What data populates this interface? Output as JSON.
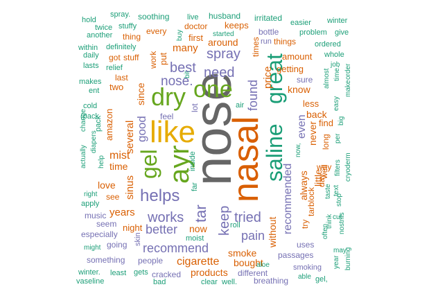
{
  "palette": {
    "teal": "#1b9e77",
    "orange": "#d95f02",
    "purple": "#7570b3",
    "green": "#66a61e",
    "gold": "#e6ab02",
    "gray": "#666666"
  },
  "words": [
    {
      "text": "nose",
      "color": "gray"
    },
    {
      "text": "nasal",
      "color": "orange"
    },
    {
      "text": "saline",
      "color": "teal"
    },
    {
      "text": "great",
      "color": "teal"
    },
    {
      "text": "like",
      "color": "gold"
    },
    {
      "text": "ayr",
      "color": "green"
    },
    {
      "text": "dry",
      "color": "green"
    },
    {
      "text": "one",
      "color": "green"
    },
    {
      "text": "gel",
      "color": "green"
    },
    {
      "text": "helps",
      "color": "purple"
    },
    {
      "text": "works",
      "color": "purple"
    },
    {
      "text": "tried",
      "color": "purple"
    },
    {
      "text": "recommend",
      "color": "purple"
    },
    {
      "text": "better",
      "color": "purple"
    },
    {
      "text": "spray",
      "color": "purple"
    },
    {
      "text": "best",
      "color": "purple"
    },
    {
      "text": "need",
      "color": "purple"
    },
    {
      "text": "nose.",
      "color": "purple"
    },
    {
      "text": "keep",
      "color": "purple"
    },
    {
      "text": "pain",
      "color": "purple"
    },
    {
      "text": "tar",
      "color": "purple"
    },
    {
      "text": "found",
      "color": "purple"
    },
    {
      "text": "recommended",
      "color": "purple"
    },
    {
      "text": "even",
      "color": "purple"
    },
    {
      "text": "good",
      "color": "purple"
    },
    {
      "text": "without",
      "color": "orange"
    },
    {
      "text": "price",
      "color": "orange"
    },
    {
      "text": "always",
      "color": "orange"
    },
    {
      "text": "little",
      "color": "orange"
    },
    {
      "text": "cigarette",
      "color": "orange"
    },
    {
      "text": "several",
      "color": "orange"
    },
    {
      "text": "mist",
      "color": "orange"
    },
    {
      "text": "time",
      "color": "orange"
    },
    {
      "text": "love",
      "color": "orange"
    },
    {
      "text": "years",
      "color": "orange"
    },
    {
      "text": "sinus",
      "color": "orange"
    },
    {
      "text": "many",
      "color": "orange"
    },
    {
      "text": "since",
      "color": "orange"
    },
    {
      "text": "around",
      "color": "orange"
    },
    {
      "text": "smoke",
      "color": "orange"
    },
    {
      "text": "bought",
      "color": "orange"
    },
    {
      "text": "products",
      "color": "orange"
    },
    {
      "text": "know",
      "color": "orange"
    },
    {
      "text": "never",
      "color": "orange"
    },
    {
      "text": "amount",
      "color": "orange"
    },
    {
      "text": "getting",
      "color": "orange"
    },
    {
      "text": "back",
      "color": "orange"
    },
    {
      "text": "less",
      "color": "orange"
    },
    {
      "text": "find",
      "color": "orange"
    },
    {
      "text": "now",
      "color": "orange"
    },
    {
      "text": "night",
      "color": "orange"
    },
    {
      "text": "two",
      "color": "orange"
    },
    {
      "text": "put",
      "color": "orange"
    },
    {
      "text": "first",
      "color": "orange"
    },
    {
      "text": "keeps",
      "color": "orange"
    },
    {
      "text": "amazon",
      "color": "orange"
    },
    {
      "text": "see",
      "color": "orange"
    },
    {
      "text": "work",
      "color": "orange"
    },
    {
      "text": "last",
      "color": "orange"
    },
    {
      "text": "got",
      "color": "orange"
    },
    {
      "text": "stuff",
      "color": "orange"
    },
    {
      "text": "every",
      "color": "orange"
    },
    {
      "text": "thing",
      "color": "orange"
    },
    {
      "text": "doctor",
      "color": "orange"
    },
    {
      "text": "times",
      "color": "orange"
    },
    {
      "text": "things",
      "color": "orange"
    },
    {
      "text": "long",
      "color": "orange"
    },
    {
      "text": "well",
      "color": "orange"
    },
    {
      "text": "way",
      "color": "orange"
    },
    {
      "text": "tarblock",
      "color": "orange"
    },
    {
      "text": "try",
      "color": "orange"
    },
    {
      "text": "day",
      "color": "orange"
    },
    {
      "text": "uses",
      "color": "purple"
    },
    {
      "text": "passages",
      "color": "purple"
    },
    {
      "text": "smoking",
      "color": "purple"
    },
    {
      "text": "different",
      "color": "purple"
    },
    {
      "text": "breathing",
      "color": "purple"
    },
    {
      "text": "people",
      "color": "purple"
    },
    {
      "text": "cracked",
      "color": "purple"
    },
    {
      "text": "something",
      "color": "purple"
    },
    {
      "text": "going",
      "color": "purple"
    },
    {
      "text": "seem",
      "color": "purple"
    },
    {
      "text": "especially",
      "color": "purple"
    },
    {
      "text": "music",
      "color": "purple"
    },
    {
      "text": "sure",
      "color": "purple"
    },
    {
      "text": "bottle",
      "color": "purple"
    },
    {
      "text": "run",
      "color": "purple"
    },
    {
      "text": "skin",
      "color": "purple"
    },
    {
      "text": "moist",
      "color": "teal"
    },
    {
      "text": "roll",
      "color": "teal"
    },
    {
      "text": "air",
      "color": "teal"
    },
    {
      "text": "feel",
      "color": "purple"
    },
    {
      "text": "lot",
      "color": "purple"
    },
    {
      "text": "inside",
      "color": "teal"
    },
    {
      "text": "far",
      "color": "teal"
    },
    {
      "text": "hold",
      "color": "teal"
    },
    {
      "text": "spray.",
      "color": "teal"
    },
    {
      "text": "soothing",
      "color": "teal"
    },
    {
      "text": "live",
      "color": "teal"
    },
    {
      "text": "husband",
      "color": "teal"
    },
    {
      "text": "irritated",
      "color": "teal"
    },
    {
      "text": "easier",
      "color": "teal"
    },
    {
      "text": "winter",
      "color": "teal"
    },
    {
      "text": "twice",
      "color": "teal"
    },
    {
      "text": "stuffy",
      "color": "teal"
    },
    {
      "text": "another",
      "color": "teal"
    },
    {
      "text": "buy",
      "color": "teal"
    },
    {
      "text": "started",
      "color": "teal"
    },
    {
      "text": "problem",
      "color": "teal"
    },
    {
      "text": "give",
      "color": "teal"
    },
    {
      "text": "within",
      "color": "teal"
    },
    {
      "text": "definitely",
      "color": "teal"
    },
    {
      "text": "ordered",
      "color": "teal"
    },
    {
      "text": "daily",
      "color": "teal"
    },
    {
      "text": "whole",
      "color": "teal"
    },
    {
      "text": "lasts",
      "color": "teal"
    },
    {
      "text": "relief",
      "color": "teal"
    },
    {
      "text": "almost",
      "color": "teal"
    },
    {
      "text": "job",
      "color": "teal"
    },
    {
      "text": "makes",
      "color": "teal"
    },
    {
      "text": "bit",
      "color": "teal"
    },
    {
      "text": "ent",
      "color": "teal"
    },
    {
      "text": "time.",
      "color": "teal"
    },
    {
      "text": "make",
      "color": "teal"
    },
    {
      "text": "order",
      "color": "teal"
    },
    {
      "text": "cold",
      "color": "teal"
    },
    {
      "text": "easy",
      "color": "teal"
    },
    {
      "text": "(pack",
      "color": "teal"
    },
    {
      "text": "pack",
      "color": "teal"
    },
    {
      "text": "big",
      "color": "teal"
    },
    {
      "text": "per",
      "color": "teal"
    },
    {
      "text": "actually",
      "color": "teal"
    },
    {
      "text": "change",
      "color": "teal"
    },
    {
      "text": "diapers",
      "color": "teal"
    },
    {
      "text": "now,",
      "color": "teal"
    },
    {
      "text": "filters",
      "color": "teal"
    },
    {
      "text": "cryoderm",
      "color": "teal"
    },
    {
      "text": "help",
      "color": "teal"
    },
    {
      "text": "taste",
      "color": "teal"
    },
    {
      "text": "text",
      "color": "teal"
    },
    {
      "text": "right",
      "color": "teal"
    },
    {
      "text": "stop",
      "color": "teal"
    },
    {
      "text": "apply",
      "color": "teal"
    },
    {
      "text": "cut",
      "color": "teal"
    },
    {
      "text": "think",
      "color": "teal"
    },
    {
      "text": "nostrils",
      "color": "teal"
    },
    {
      "text": "often",
      "color": "teal"
    },
    {
      "text": "might",
      "color": "teal"
    },
    {
      "text": "may",
      "color": "teal"
    },
    {
      "text": "year",
      "color": "teal"
    },
    {
      "text": "burning",
      "color": "teal"
    },
    {
      "text": "aloe",
      "color": "teal"
    },
    {
      "text": "winter.",
      "color": "teal"
    },
    {
      "text": "least",
      "color": "teal"
    },
    {
      "text": "gets",
      "color": "teal"
    },
    {
      "text": "able",
      "color": "teal"
    },
    {
      "text": "gel,",
      "color": "teal"
    },
    {
      "text": "vaseline",
      "color": "teal"
    },
    {
      "text": "bad",
      "color": "teal"
    },
    {
      "text": "clear",
      "color": "teal"
    },
    {
      "text": "well.",
      "color": "teal"
    }
  ]
}
